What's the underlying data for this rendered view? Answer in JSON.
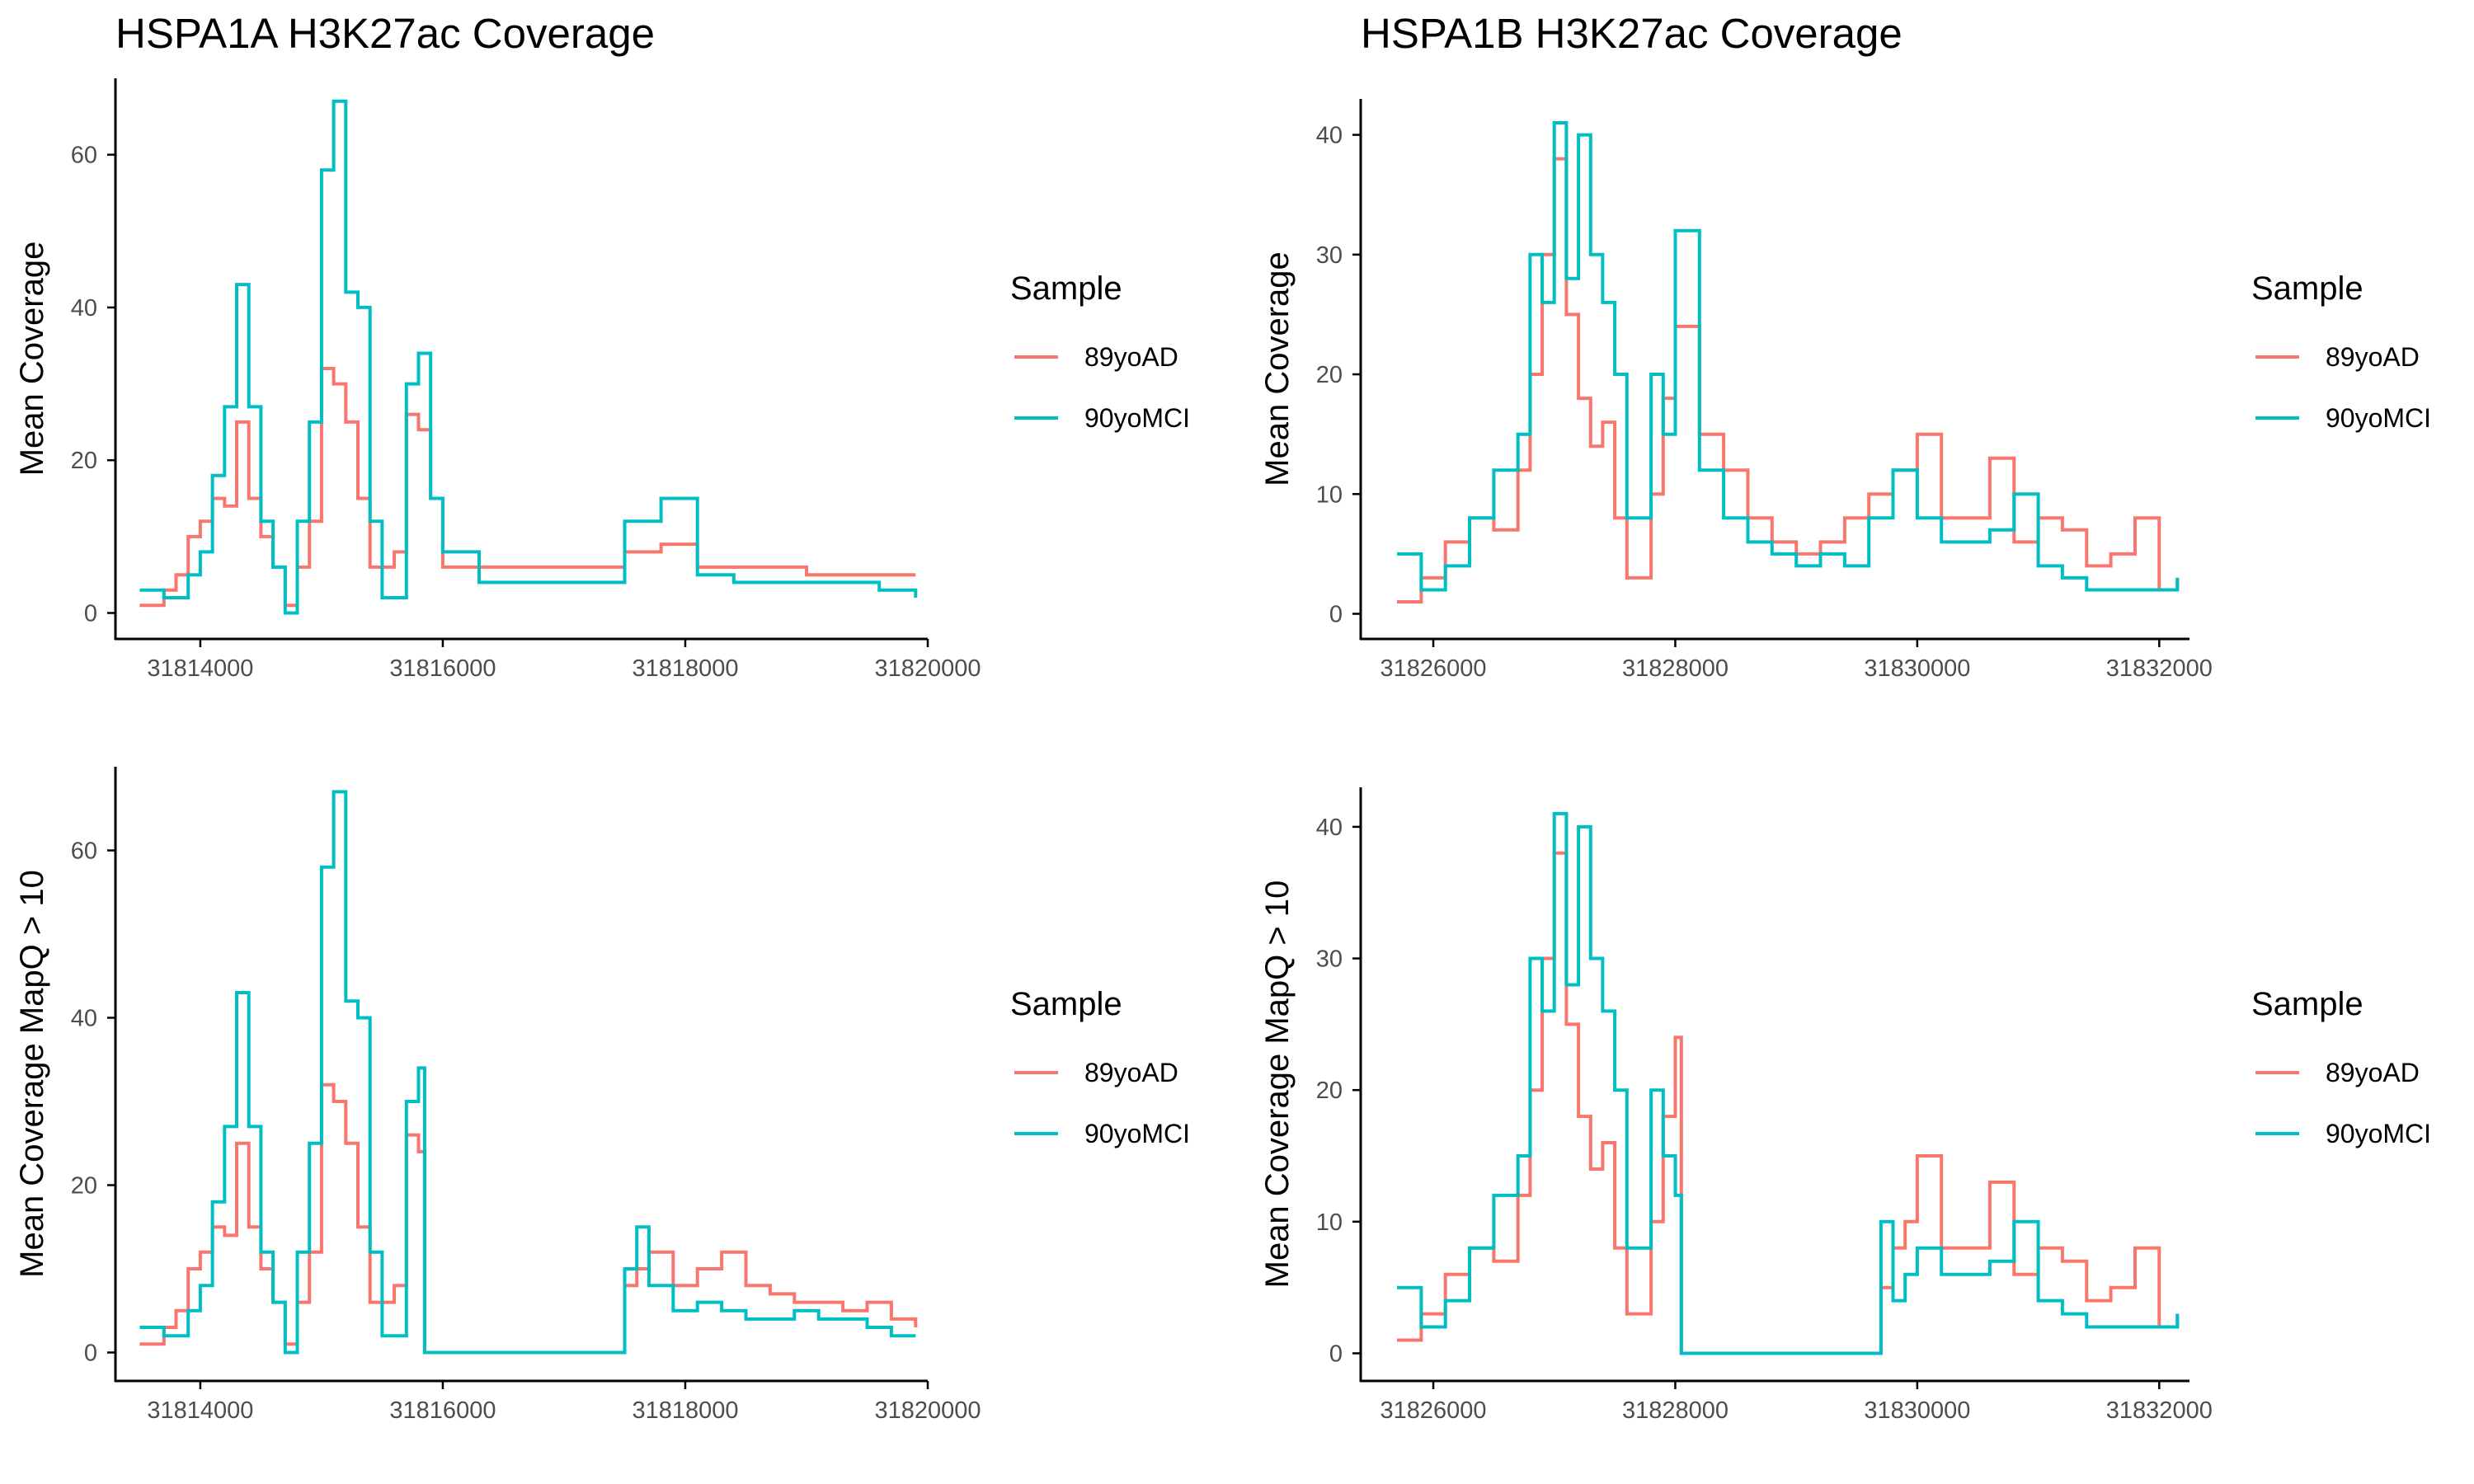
{
  "colors": {
    "series_1": "#F8766D",
    "series_2": "#00BFC4",
    "axis": "#000000",
    "tick_label": "#4D4D4D"
  },
  "chart_data": [
    {
      "type": "line",
      "title": "HSPA1A H3K27ac Coverage",
      "xlabel": "",
      "ylabel": "Mean Coverage",
      "xlim": [
        31813300,
        31820000
      ],
      "ylim": [
        -3.4,
        70
      ],
      "xticks": [
        "31814000",
        "31816000",
        "31818000",
        "31820000"
      ],
      "yticks": [
        "0",
        "20",
        "40",
        "60"
      ],
      "legend": {
        "title": "Sample",
        "position": "right",
        "entries": [
          "89yoAD",
          "90yoMCI"
        ]
      },
      "series": [
        {
          "name": "89yoAD",
          "color": "#F8766D",
          "x": [
            31813500,
            31813600,
            31813700,
            31813800,
            31813900,
            31814000,
            31814100,
            31814200,
            31814300,
            31814400,
            31814500,
            31814600,
            31814700,
            31814800,
            31814900,
            31815000,
            31815100,
            31815200,
            31815300,
            31815400,
            31815500,
            31815600,
            31815700,
            31815800,
            31815900,
            31816000,
            31816300,
            31816600,
            31816900,
            31817200,
            31817500,
            31817800,
            31818100,
            31818400,
            31818700,
            31819000,
            31819300,
            31819600,
            31819900
          ],
          "y": [
            1,
            1,
            3,
            5,
            10,
            12,
            15,
            14,
            25,
            15,
            10,
            6,
            1,
            6,
            12,
            32,
            30,
            25,
            15,
            6,
            6,
            8,
            26,
            24,
            15,
            6,
            6,
            6,
            6,
            6,
            8,
            9,
            6,
            6,
            6,
            5,
            5,
            5,
            5
          ]
        },
        {
          "name": "90yoMCI",
          "color": "#00BFC4",
          "x": [
            31813500,
            31813600,
            31813700,
            31813800,
            31813900,
            31814000,
            31814100,
            31814200,
            31814300,
            31814400,
            31814500,
            31814600,
            31814700,
            31814800,
            31814900,
            31815000,
            31815100,
            31815200,
            31815300,
            31815400,
            31815500,
            31815600,
            31815700,
            31815800,
            31815900,
            31816000,
            31816300,
            31816600,
            31816900,
            31817200,
            31817500,
            31817800,
            31818100,
            31818400,
            31818700,
            31819000,
            31819300,
            31819600,
            31819900
          ],
          "y": [
            3,
            3,
            2,
            2,
            5,
            8,
            18,
            27,
            43,
            27,
            12,
            6,
            0,
            12,
            25,
            58,
            67,
            42,
            40,
            12,
            2,
            2,
            30,
            34,
            15,
            8,
            4,
            4,
            4,
            4,
            12,
            15,
            5,
            4,
            4,
            4,
            4,
            3,
            2
          ]
        }
      ]
    },
    {
      "type": "line",
      "title": "HSPA1B H3K27ac Coverage",
      "xlabel": "",
      "ylabel": "Mean Coverage",
      "xlim": [
        31825400,
        31832250
      ],
      "ylim": [
        -2.1,
        43
      ],
      "xticks": [
        "31826000",
        "31828000",
        "31830000",
        "31832000"
      ],
      "yticks": [
        "0",
        "10",
        "20",
        "30",
        "40"
      ],
      "legend": {
        "title": "Sample",
        "position": "right",
        "entries": [
          "89yoAD",
          "90yoMCI"
        ]
      },
      "series": [
        {
          "name": "89yoAD",
          "color": "#F8766D",
          "x": [
            31825700,
            31825900,
            31826100,
            31826300,
            31826500,
            31826700,
            31826800,
            31826900,
            31827000,
            31827100,
            31827200,
            31827300,
            31827400,
            31827500,
            31827600,
            31827700,
            31827800,
            31827900,
            31828000,
            31828200,
            31828400,
            31828600,
            31828800,
            31829000,
            31829200,
            31829400,
            31829600,
            31829800,
            31830000,
            31830200,
            31830400,
            31830600,
            31830800,
            31831000,
            31831200,
            31831400,
            31831600,
            31831800,
            31832000,
            31832150
          ],
          "y": [
            1,
            3,
            6,
            8,
            7,
            12,
            20,
            30,
            38,
            25,
            18,
            14,
            16,
            8,
            3,
            3,
            10,
            18,
            24,
            15,
            12,
            8,
            6,
            5,
            6,
            8,
            10,
            12,
            15,
            8,
            8,
            13,
            6,
            8,
            7,
            4,
            5,
            8,
            2,
            3
          ]
        },
        {
          "name": "90yoMCI",
          "color": "#00BFC4",
          "x": [
            31825700,
            31825900,
            31826100,
            31826300,
            31826500,
            31826700,
            31826800,
            31826900,
            31827000,
            31827100,
            31827200,
            31827300,
            31827400,
            31827500,
            31827600,
            31827700,
            31827800,
            31827900,
            31828000,
            31828200,
            31828400,
            31828600,
            31828800,
            31829000,
            31829200,
            31829400,
            31829600,
            31829800,
            31830000,
            31830200,
            31830400,
            31830600,
            31830800,
            31831000,
            31831200,
            31831400,
            31831600,
            31831800,
            31832000,
            31832150
          ],
          "y": [
            5,
            2,
            4,
            8,
            12,
            15,
            30,
            26,
            41,
            28,
            40,
            30,
            26,
            20,
            8,
            8,
            20,
            15,
            32,
            12,
            8,
            6,
            5,
            4,
            5,
            4,
            8,
            12,
            8,
            6,
            6,
            7,
            10,
            4,
            3,
            2,
            2,
            2,
            2,
            3
          ]
        }
      ]
    },
    {
      "type": "line",
      "title": "",
      "xlabel": "",
      "ylabel": "Mean Coverage MapQ > 10",
      "xlim": [
        31813300,
        31820000
      ],
      "ylim": [
        -3.4,
        70
      ],
      "xticks": [
        "31814000",
        "31816000",
        "31818000",
        "31820000"
      ],
      "yticks": [
        "0",
        "20",
        "40",
        "60"
      ],
      "legend": {
        "title": "Sample",
        "position": "right",
        "entries": [
          "89yoAD",
          "90yoMCI"
        ]
      },
      "series": [
        {
          "name": "89yoAD",
          "color": "#F8766D",
          "x": [
            31813500,
            31813600,
            31813700,
            31813800,
            31813900,
            31814000,
            31814100,
            31814200,
            31814300,
            31814400,
            31814500,
            31814600,
            31814700,
            31814800,
            31814900,
            31815000,
            31815100,
            31815200,
            31815300,
            31815400,
            31815500,
            31815600,
            31815700,
            31815800,
            31815850,
            31817400,
            31817500,
            31817600,
            31817700,
            31817900,
            31818100,
            31818300,
            31818500,
            31818700,
            31818900,
            31819100,
            31819300,
            31819500,
            31819700,
            31819900
          ],
          "y": [
            1,
            1,
            3,
            5,
            10,
            12,
            15,
            14,
            25,
            15,
            10,
            6,
            1,
            6,
            12,
            32,
            30,
            25,
            15,
            6,
            6,
            8,
            26,
            24,
            0,
            0,
            8,
            10,
            12,
            8,
            10,
            12,
            8,
            7,
            6,
            6,
            5,
            6,
            4,
            3
          ]
        },
        {
          "name": "90yoMCI",
          "color": "#00BFC4",
          "x": [
            31813500,
            31813600,
            31813700,
            31813800,
            31813900,
            31814000,
            31814100,
            31814200,
            31814300,
            31814400,
            31814500,
            31814600,
            31814700,
            31814800,
            31814900,
            31815000,
            31815100,
            31815200,
            31815300,
            31815400,
            31815500,
            31815600,
            31815700,
            31815800,
            31815850,
            31817400,
            31817500,
            31817600,
            31817700,
            31817900,
            31818100,
            31818300,
            31818500,
            31818700,
            31818900,
            31819100,
            31819300,
            31819500,
            31819700,
            31819900
          ],
          "y": [
            3,
            3,
            2,
            2,
            5,
            8,
            18,
            27,
            43,
            27,
            12,
            6,
            0,
            12,
            25,
            58,
            67,
            42,
            40,
            12,
            2,
            2,
            30,
            34,
            0,
            0,
            10,
            15,
            8,
            5,
            6,
            5,
            4,
            4,
            5,
            4,
            4,
            3,
            2,
            2
          ]
        }
      ]
    },
    {
      "type": "line",
      "title": "",
      "xlabel": "",
      "ylabel": "Mean Coverage MapQ > 10",
      "xlim": [
        31825400,
        31832250
      ],
      "ylim": [
        -2.1,
        43
      ],
      "xticks": [
        "31826000",
        "31828000",
        "31830000",
        "31832000"
      ],
      "yticks": [
        "0",
        "10",
        "20",
        "30",
        "40"
      ],
      "legend": {
        "title": "Sample",
        "position": "right",
        "entries": [
          "89yoAD",
          "90yoMCI"
        ]
      },
      "series": [
        {
          "name": "89yoAD",
          "color": "#F8766D",
          "x": [
            31825700,
            31825900,
            31826100,
            31826300,
            31826500,
            31826700,
            31826800,
            31826900,
            31827000,
            31827100,
            31827200,
            31827300,
            31827400,
            31827500,
            31827600,
            31827700,
            31827800,
            31827900,
            31828000,
            31828050,
            31829600,
            31829700,
            31829800,
            31829900,
            31830000,
            31830200,
            31830400,
            31830600,
            31830800,
            31831000,
            31831200,
            31831400,
            31831600,
            31831800,
            31832000,
            31832150
          ],
          "y": [
            1,
            3,
            6,
            8,
            7,
            12,
            20,
            30,
            38,
            25,
            18,
            14,
            16,
            8,
            3,
            3,
            10,
            18,
            24,
            0,
            0,
            5,
            8,
            10,
            15,
            8,
            8,
            13,
            6,
            8,
            7,
            4,
            5,
            8,
            2,
            3
          ]
        },
        {
          "name": "90yoMCI",
          "color": "#00BFC4",
          "x": [
            31825700,
            31825900,
            31826100,
            31826300,
            31826500,
            31826700,
            31826800,
            31826900,
            31827000,
            31827100,
            31827200,
            31827300,
            31827400,
            31827500,
            31827600,
            31827700,
            31827800,
            31827900,
            31828000,
            31828050,
            31829600,
            31829700,
            31829800,
            31829900,
            31830000,
            31830200,
            31830400,
            31830600,
            31830800,
            31831000,
            31831200,
            31831400,
            31831600,
            31831800,
            31832000,
            31832150
          ],
          "y": [
            5,
            2,
            4,
            8,
            12,
            15,
            30,
            26,
            41,
            28,
            40,
            30,
            26,
            20,
            8,
            8,
            20,
            15,
            12,
            0,
            0,
            10,
            4,
            6,
            8,
            6,
            6,
            7,
            10,
            4,
            3,
            2,
            2,
            2,
            2,
            3
          ]
        }
      ]
    }
  ]
}
